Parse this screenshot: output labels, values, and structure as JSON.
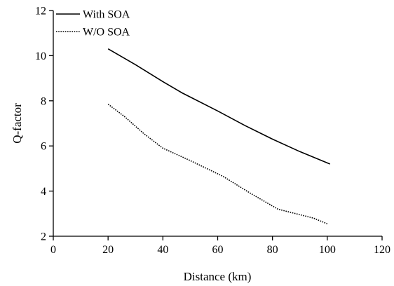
{
  "chart_data": {
    "type": "line",
    "xlabel": "Distance (km)",
    "ylabel": "Q-factor",
    "xlim": [
      0,
      120
    ],
    "ylim": [
      2,
      12
    ],
    "xticks": [
      0,
      20,
      40,
      60,
      80,
      100,
      120
    ],
    "yticks": [
      2,
      4,
      6,
      8,
      10,
      12
    ],
    "grid": false,
    "legend_position": "top-left",
    "series": [
      {
        "name": "With SOA",
        "style": "solid",
        "color": "#000000",
        "x": [
          20,
          30,
          40,
          47,
          60,
          70,
          80,
          90,
          101
        ],
        "y": [
          10.3,
          9.6,
          8.85,
          8.35,
          7.55,
          6.9,
          6.3,
          5.75,
          5.2
        ]
      },
      {
        "name": "W/O SOA",
        "style": "dotted",
        "color": "#000000",
        "x": [
          20,
          26,
          33,
          40,
          50,
          62,
          72,
          82,
          95,
          100
        ],
        "y": [
          7.85,
          7.3,
          6.55,
          5.9,
          5.35,
          4.65,
          3.9,
          3.2,
          2.8,
          2.55
        ]
      }
    ]
  }
}
